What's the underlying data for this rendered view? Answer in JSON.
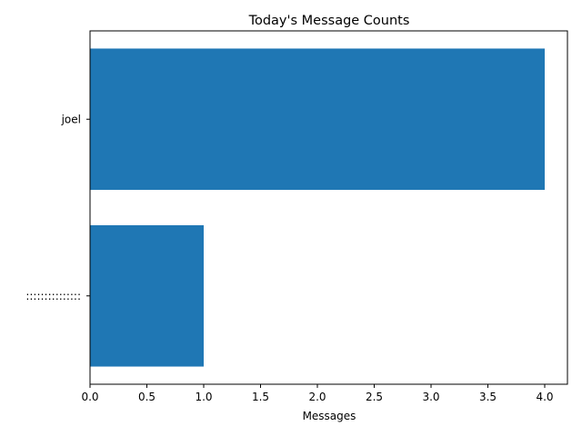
{
  "chart_data": {
    "type": "bar",
    "orientation": "horizontal",
    "title": "Today's Message Counts",
    "xlabel": "Messages",
    "ylabel": "",
    "categories": [
      ":::::::::::::::",
      "joel"
    ],
    "values": [
      1,
      4
    ],
    "xlim": [
      0,
      4.2
    ],
    "xticks": [
      0.0,
      0.5,
      1.0,
      1.5,
      2.0,
      2.5,
      3.0,
      3.5,
      4.0
    ],
    "xtick_labels": [
      "0.0",
      "0.5",
      "1.0",
      "1.5",
      "2.0",
      "2.5",
      "3.0",
      "3.5",
      "4.0"
    ],
    "bar_color": "#1f77b4",
    "grid": false,
    "legend": "none"
  }
}
